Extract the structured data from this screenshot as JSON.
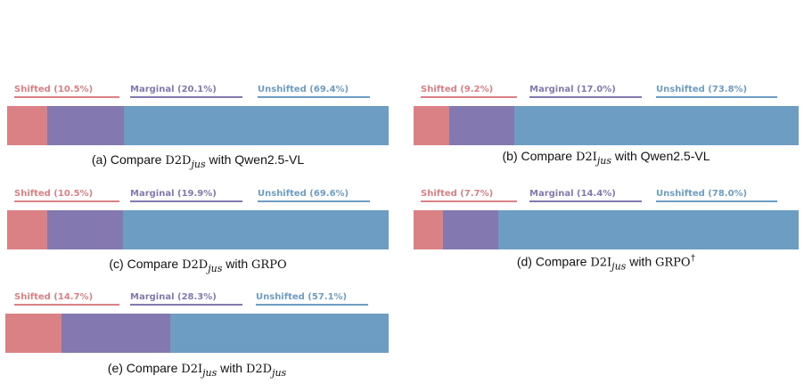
{
  "colors": {
    "shifted": "#d98185",
    "marginal": "#8478b0",
    "unshifted": "#6e9dc4"
  },
  "chart_data": [
    {
      "type": "bar",
      "orientation": "horizontal-stacked",
      "caption": {
        "prefix": "(a) Compare ",
        "subject": "D2D",
        "subscript": "jus",
        "connector": " with ",
        "target": "Qwen2.5-VL",
        "target_style": "sans",
        "suffix": ""
      },
      "series": [
        {
          "name": "Shifted",
          "value": 10.5,
          "legend_label": "Shifted (10.5%)"
        },
        {
          "name": "Marginal",
          "value": 20.1,
          "legend_label": "Marginal (20.1%)"
        },
        {
          "name": "Unshifted",
          "value": 69.4,
          "legend_label": "Unshifted (69.4%)"
        }
      ]
    },
    {
      "type": "bar",
      "orientation": "horizontal-stacked",
      "caption": {
        "prefix": "(b) Compare ",
        "subject": "D2I",
        "subscript": "jus",
        "connector": " with ",
        "target": "Qwen2.5-VL",
        "target_style": "sans",
        "suffix": ""
      },
      "series": [
        {
          "name": "Shifted",
          "value": 9.2,
          "legend_label": "Shifted (9.2%)"
        },
        {
          "name": "Marginal",
          "value": 17.0,
          "legend_label": "Marginal (17.0%)"
        },
        {
          "name": "Unshifted",
          "value": 73.8,
          "legend_label": "Unshifted (73.8%)"
        }
      ]
    },
    {
      "type": "bar",
      "orientation": "horizontal-stacked",
      "caption": {
        "prefix": "(c) Compare ",
        "subject": "D2D",
        "subscript": "jus",
        "connector": " with ",
        "target": "GRPO",
        "target_style": "serif",
        "suffix": ""
      },
      "series": [
        {
          "name": "Shifted",
          "value": 10.5,
          "legend_label": "Shifted (10.5%)"
        },
        {
          "name": "Marginal",
          "value": 19.9,
          "legend_label": "Marginal (19.9%)"
        },
        {
          "name": "Unshifted",
          "value": 69.6,
          "legend_label": "Unshifted (69.6%)"
        }
      ]
    },
    {
      "type": "bar",
      "orientation": "horizontal-stacked",
      "caption": {
        "prefix": "(d) Compare ",
        "subject": "D2I",
        "subscript": "jus",
        "connector": " with ",
        "target": "GRPO",
        "target_style": "serif",
        "suffix": "†"
      },
      "series": [
        {
          "name": "Shifted",
          "value": 7.7,
          "legend_label": "Shifted (7.7%)"
        },
        {
          "name": "Marginal",
          "value": 14.4,
          "legend_label": "Marginal (14.4%)"
        },
        {
          "name": "Unshifted",
          "value": 78.0,
          "legend_label": "Unshifted (78.0%)"
        }
      ]
    },
    {
      "type": "bar",
      "orientation": "horizontal-stacked",
      "caption": {
        "prefix": "(e) Compare ",
        "subject": "D2I",
        "subscript": "jus",
        "connector": " with ",
        "target": "D2D",
        "target_sub": "jus",
        "target_style": "serif",
        "suffix": ""
      },
      "series": [
        {
          "name": "Shifted",
          "value": 14.7,
          "legend_label": "Shifted (14.7%)"
        },
        {
          "name": "Marginal",
          "value": 28.3,
          "legend_label": "Marginal (28.3%)"
        },
        {
          "name": "Unshifted",
          "value": 57.1,
          "legend_label": "Unshifted (57.1%)"
        }
      ]
    }
  ]
}
